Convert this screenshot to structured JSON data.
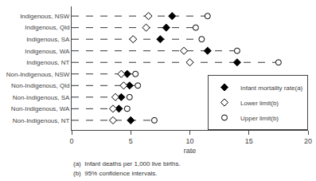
{
  "chart_data": {
    "type": "dot",
    "categories": [
      "Indigenous, NSW",
      "Indigenous, Qld",
      "Indigenous, SA",
      "Indigenous, WA",
      "Indigenous, NT",
      "Non-Indigenous, NSW",
      "Non-Indigenous, Qld",
      "Non-Indigenous, SA",
      "Non-Indigenous, WA",
      "Non-Indigenous, NT"
    ],
    "orientation": "horizontal",
    "series": [
      {
        "name": "Infant mortality rate(a)",
        "marker": "diamond",
        "color": "black",
        "values": [
          8.5,
          8.0,
          7.5,
          11.5,
          14.0,
          4.7,
          4.9,
          4.2,
          4.0,
          5.0
        ]
      },
      {
        "name": "Lower limit(b)",
        "marker": "diamond-open",
        "color": "black",
        "values": [
          6.5,
          6.3,
          5.2,
          9.5,
          10.0,
          4.2,
          4.4,
          3.7,
          3.5,
          3.5
        ]
      },
      {
        "name": "Upper limit(b)",
        "marker": "circle-open",
        "color": "black",
        "line_style": "dashed",
        "values": [
          11.5,
          10.5,
          11.0,
          14.0,
          17.5,
          5.4,
          5.6,
          4.9,
          4.7,
          7.0
        ]
      }
    ],
    "x_label": "rate",
    "xlim": [
      0,
      20
    ],
    "xticks": [
      0,
      5,
      10,
      15,
      20
    ],
    "annotations": [
      "(a)  Infant deaths per 1,000 live births.",
      "(b)  95% confidence intervals."
    ],
    "legend": "lower right",
    "grid": false
  }
}
